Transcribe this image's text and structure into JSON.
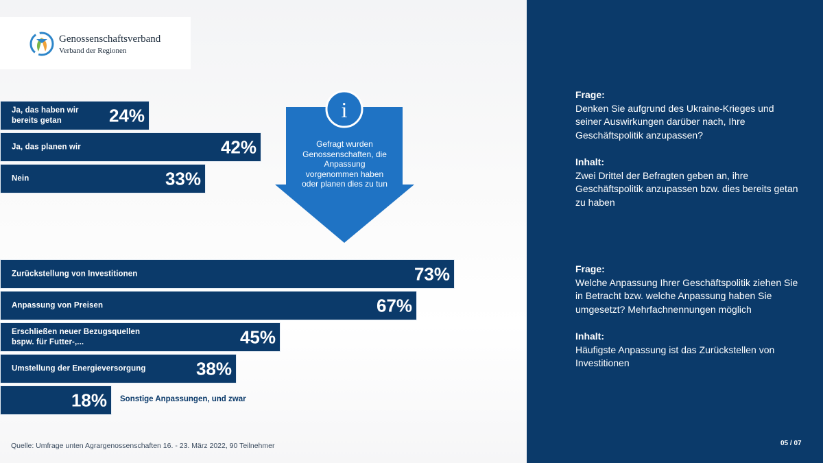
{
  "logo": {
    "name": "Genossenschaftsverband",
    "subtitle": "Verband der Regionen"
  },
  "info_arrow": {
    "icon": "info-icon",
    "glyph": "i",
    "text": "Gefragt wurden Genossenschaften, die Anpassung vorgenommen haben oder planen dies zu tun"
  },
  "chart_data": [
    {
      "type": "bar",
      "orientation": "horizontal",
      "categories": [
        "Ja, das haben wir\nbereits getan",
        "Ja, das planen wir",
        "Nein"
      ],
      "values": [
        24,
        42,
        33
      ],
      "value_labels": [
        "24%",
        "42%",
        "33%"
      ],
      "unit": "%"
    },
    {
      "type": "bar",
      "orientation": "horizontal",
      "categories": [
        "Zurückstellung  von Investitionen",
        "Anpassung  von Preisen",
        "Erschließen  neuer Bezugsquellen\nbspw. für Futter-,...",
        "Umstellung der Energieversorgung",
        "Sonstige  Anpassungen,  und zwar"
      ],
      "values": [
        73,
        67,
        45,
        38,
        18
      ],
      "value_labels": [
        "73%",
        "67%",
        "45%",
        "38%",
        "18%"
      ],
      "unit": "%"
    }
  ],
  "panel": {
    "q1_head": "Frage:",
    "q1_text": "Denken Sie aufgrund  des Ukraine-Krieges und seiner Auswirkungen darüber nach, Ihre Geschäftspolitik anzupassen?",
    "i1_head": "Inhalt:",
    "i1_text": "Zwei Drittel der Befragten geben an, ihre Geschäftspolitik anzupassen bzw. dies bereits getan zu haben",
    "q2_head": "Frage:",
    "q2_text": "Welche Anpassung Ihrer  Geschäftspolitik ziehen Sie in Betracht bzw. welche Anpassung haben Sie umgesetzt?  Mehrfachnennungen  möglich",
    "i2_head": "Inhalt:",
    "i2_text": "Häufigste Anpassung ist das Zurückstellen von Investitionen"
  },
  "source": "Quelle: Umfrage unten Agrargenossenschaften 16. - 23. März 2022, 90 Teilnehmer",
  "page_number": "05 / 07",
  "colors": {
    "navy": "#0b3a6a",
    "arrow_blue": "#1f73c4",
    "logo_blue": "#2e86c9",
    "logo_green": "#7ab648",
    "logo_orange": "#f0a23a"
  }
}
